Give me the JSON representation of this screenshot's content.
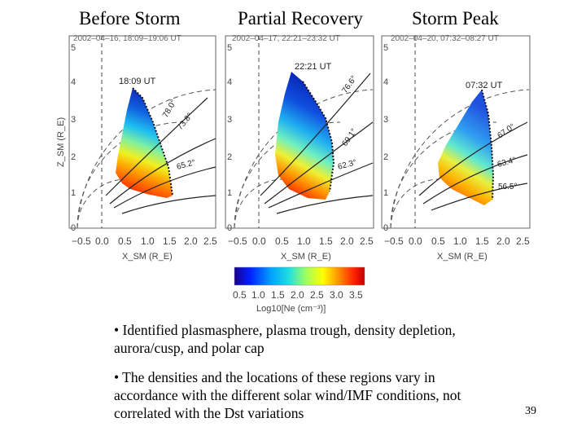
{
  "headers": {
    "before": "Before Storm",
    "partial": "Partial Recovery",
    "peak": "Storm Peak"
  },
  "panels": [
    {
      "id": "before",
      "date_line": "2002–04–16, 18:09–19:06 UT",
      "time_label": "18:09 UT",
      "angle_labels": [
        "78.0°",
        "73.8°",
        "65.2°"
      ],
      "bulk_color": "#ff4400",
      "top_color": "#1040e0"
    },
    {
      "id": "partial",
      "date_line": "2002–04–17, 22:21–23:32 UT",
      "time_label": "22:21 UT",
      "angle_labels": [
        "76.6°",
        "69.1°",
        "62.3°"
      ],
      "bulk_color": "#ff3a00",
      "top_color": "#0838d8"
    },
    {
      "id": "peak",
      "date_line": "2002–04–20, 07:32–08:27 UT",
      "time_label": "07:32 UT",
      "angle_labels": [
        "67.0°",
        "63.4°",
        "56.5°"
      ],
      "bulk_color": "#ff5000",
      "top_color": "#2060f0"
    }
  ],
  "axes": {
    "y_label": "Z_SM (R_E)",
    "x_label": "X_SM (R_E)",
    "y_ticks": [
      "0",
      "1",
      "2",
      "3",
      "4",
      "5"
    ],
    "x_ticks": [
      "−0.5",
      "0.0",
      "0.5",
      "1.0",
      "1.5",
      "2.0",
      "2.5"
    ]
  },
  "colorbar": {
    "ticks": [
      "0.5",
      "1.0",
      "1.5",
      "2.0",
      "2.5",
      "3.0",
      "3.5"
    ],
    "label": "Log10[Ne (cm⁻³)]"
  },
  "bullets": [
    "• Identified plasmasphere, plasma trough, density depletion, aurora/cusp, and polar cap",
    "• The densities and the locations of these regions vary in accordance with the different solar wind/IMF conditions, not correlated with the Dst variations"
  ],
  "page_number": "39"
}
